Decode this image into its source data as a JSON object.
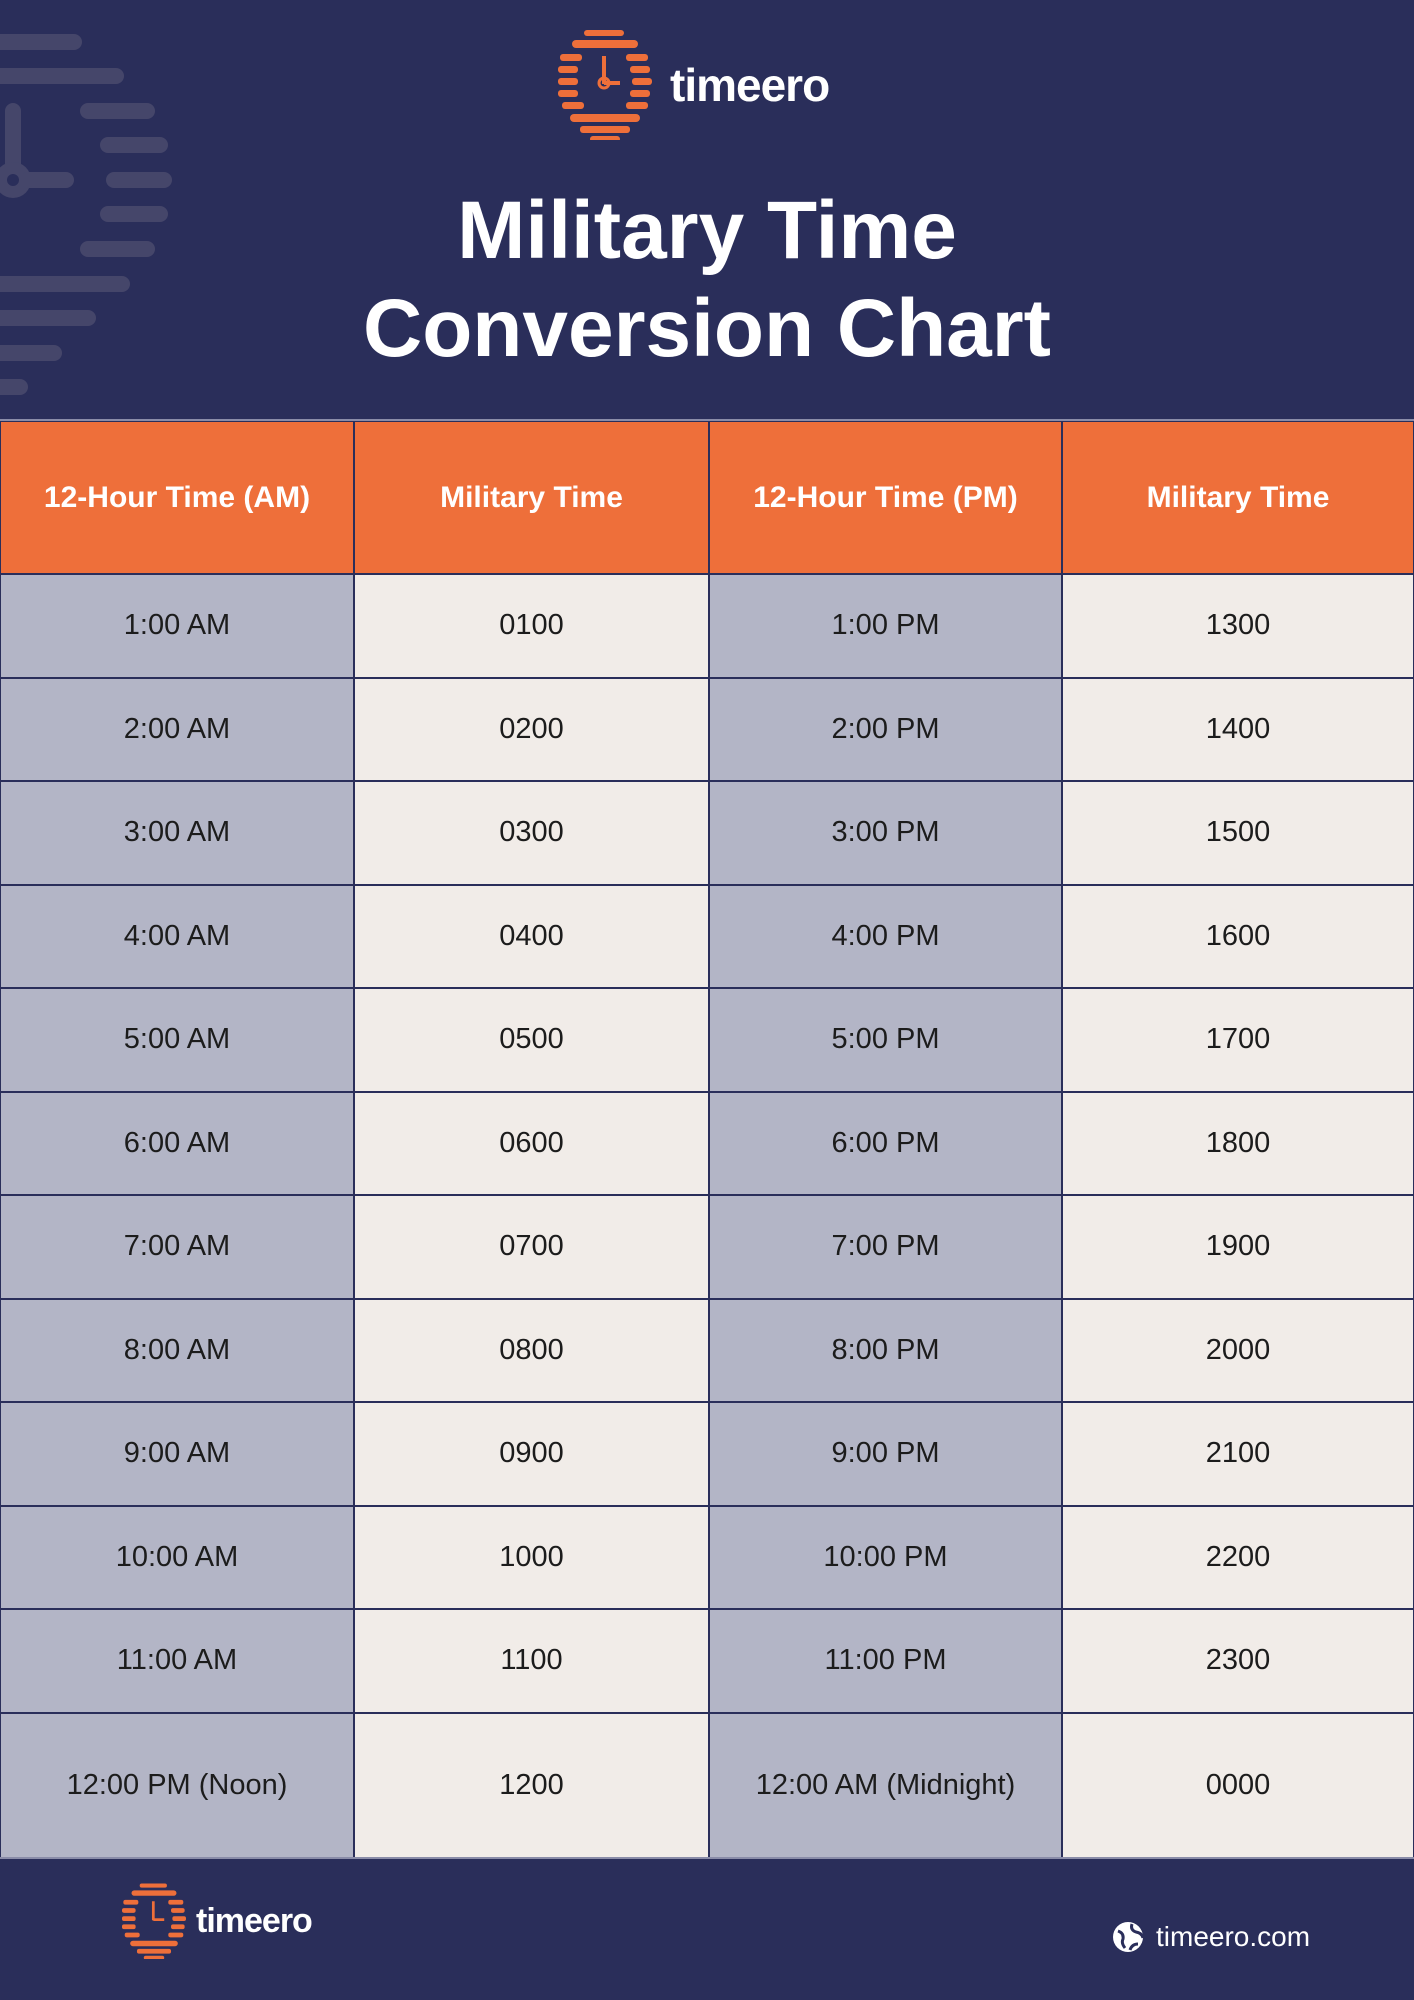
{
  "brand": {
    "name": "timeero",
    "website": "timeero.com"
  },
  "title": {
    "line1": "Military Time",
    "line2": "Conversion Chart"
  },
  "colors": {
    "navy": "#2a2e5a",
    "orange": "#ee6f3a",
    "gray_cell": "#b3b5c6",
    "cream_cell": "#f1ece8"
  },
  "table": {
    "headers": [
      "12-Hour Time (AM)",
      "Military Time",
      "12-Hour Time (PM)",
      "Military Time"
    ],
    "rows": [
      [
        "1:00 AM",
        "0100",
        "1:00 PM",
        "1300"
      ],
      [
        "2:00 AM",
        "0200",
        "2:00 PM",
        "1400"
      ],
      [
        "3:00 AM",
        "0300",
        "3:00 PM",
        "1500"
      ],
      [
        "4:00 AM",
        "0400",
        "4:00 PM",
        "1600"
      ],
      [
        "5:00 AM",
        "0500",
        "5:00 PM",
        "1700"
      ],
      [
        "6:00 AM",
        "0600",
        "6:00 PM",
        "1800"
      ],
      [
        "7:00 AM",
        "0700",
        "7:00 PM",
        "1900"
      ],
      [
        "8:00 AM",
        "0800",
        "8:00 PM",
        "2000"
      ],
      [
        "9:00 AM",
        "0900",
        "9:00 PM",
        "2100"
      ],
      [
        "10:00 AM",
        "1000",
        "10:00 PM",
        "2200"
      ],
      [
        "11:00 AM",
        "1100",
        "11:00 PM",
        "2300"
      ],
      [
        "12:00 PM (Noon)",
        "1200",
        "12:00 AM (Midnight)",
        "0000"
      ]
    ]
  },
  "icons": {
    "logo": "stopwatch-logo-icon",
    "globe": "globe-icon"
  }
}
